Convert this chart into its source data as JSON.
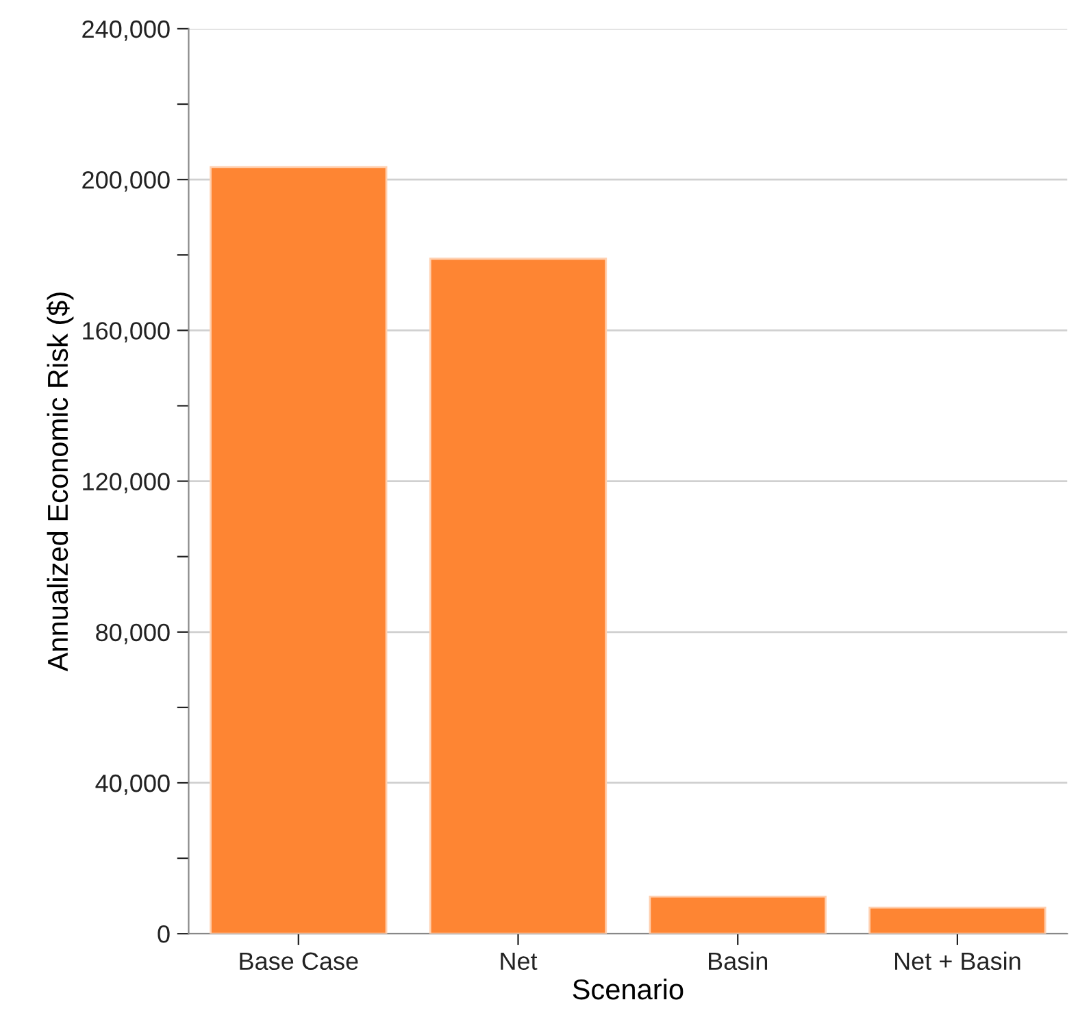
{
  "chart_data": {
    "type": "bar",
    "xlabel": "Scenario",
    "ylabel": "Annualized Economic Risk ($)",
    "categories": [
      "Base Case",
      "Net",
      "Basin",
      "Net + Basin"
    ],
    "values": [
      203300,
      179000,
      9800,
      6900
    ],
    "color": "#fe8533",
    "ylim": [
      0,
      240000
    ],
    "yticks": [
      0,
      {
        "value": 20000,
        "label": null
      },
      {
        "value": 40000,
        "label": "40,000"
      },
      {
        "value": 60000,
        "label": null
      },
      {
        "value": 80000,
        "label": "80,000"
      },
      {
        "value": 100000,
        "label": null
      },
      {
        "value": 120000,
        "label": "120,000"
      },
      {
        "value": 140000,
        "label": null
      },
      {
        "value": 160000,
        "label": "160,000"
      },
      {
        "value": 180000,
        "label": null
      },
      {
        "value": 200000,
        "label": "200,000"
      },
      {
        "value": 220000,
        "label": null
      },
      {
        "value": 240000,
        "label": "240,000"
      }
    ],
    "grid": "y"
  }
}
